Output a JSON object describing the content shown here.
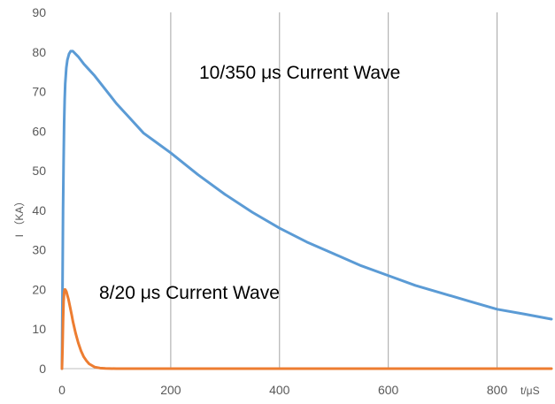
{
  "chart_data": {
    "type": "line",
    "title": "",
    "xlabel": "t/μS",
    "ylabel": "I （KA）",
    "xlim": [
      0,
      900
    ],
    "ylim": [
      0,
      90
    ],
    "x_ticks": [
      0,
      200,
      400,
      600,
      800
    ],
    "y_ticks": [
      0,
      10,
      20,
      30,
      40,
      50,
      60,
      70,
      80,
      90
    ],
    "grid": {
      "vertical": true,
      "horizontal": false
    },
    "legend": "none",
    "annotations": [
      {
        "text": "10/350 μs  Current Wave"
      },
      {
        "text": "8/20 μs Current Wave"
      }
    ],
    "series": [
      {
        "name": "10/350 μs  Current Wave",
        "color": "#5B9BD5",
        "x": [
          0,
          1,
          2,
          3,
          4,
          5,
          6,
          8,
          10,
          13,
          16,
          20,
          25,
          30,
          40,
          50,
          60,
          80,
          100,
          120,
          150,
          175,
          200,
          250,
          300,
          350,
          400,
          450,
          500,
          550,
          600,
          650,
          700,
          750,
          800,
          850,
          900
        ],
        "y": [
          0,
          20,
          40,
          52,
          62,
          68,
          72,
          76,
          78,
          79.5,
          80.2,
          80.2,
          79.5,
          78.8,
          77,
          75.5,
          74,
          70.5,
          67,
          64,
          59.5,
          57,
          54.5,
          49,
          44,
          39.5,
          35.5,
          32,
          29,
          26,
          23.5,
          21,
          19,
          17,
          15,
          13.8,
          12.5
        ]
      },
      {
        "name": "8/20 μs Current Wave",
        "color": "#ED7D31",
        "x": [
          0,
          1,
          2,
          3,
          4,
          5,
          6,
          8,
          10,
          12,
          15,
          18,
          20,
          25,
          30,
          35,
          40,
          45,
          50,
          60,
          70,
          80,
          100,
          150,
          200,
          300,
          400,
          500,
          600,
          700,
          800,
          900
        ],
        "y": [
          0,
          5,
          12,
          17,
          19.2,
          20,
          20,
          19.5,
          18.5,
          17.5,
          15.5,
          13.5,
          12,
          9,
          6.5,
          4.5,
          3,
          2,
          1.2,
          0.4,
          0.15,
          0.05,
          0,
          0,
          0,
          0,
          0,
          0,
          0,
          0,
          0,
          0
        ]
      }
    ]
  }
}
